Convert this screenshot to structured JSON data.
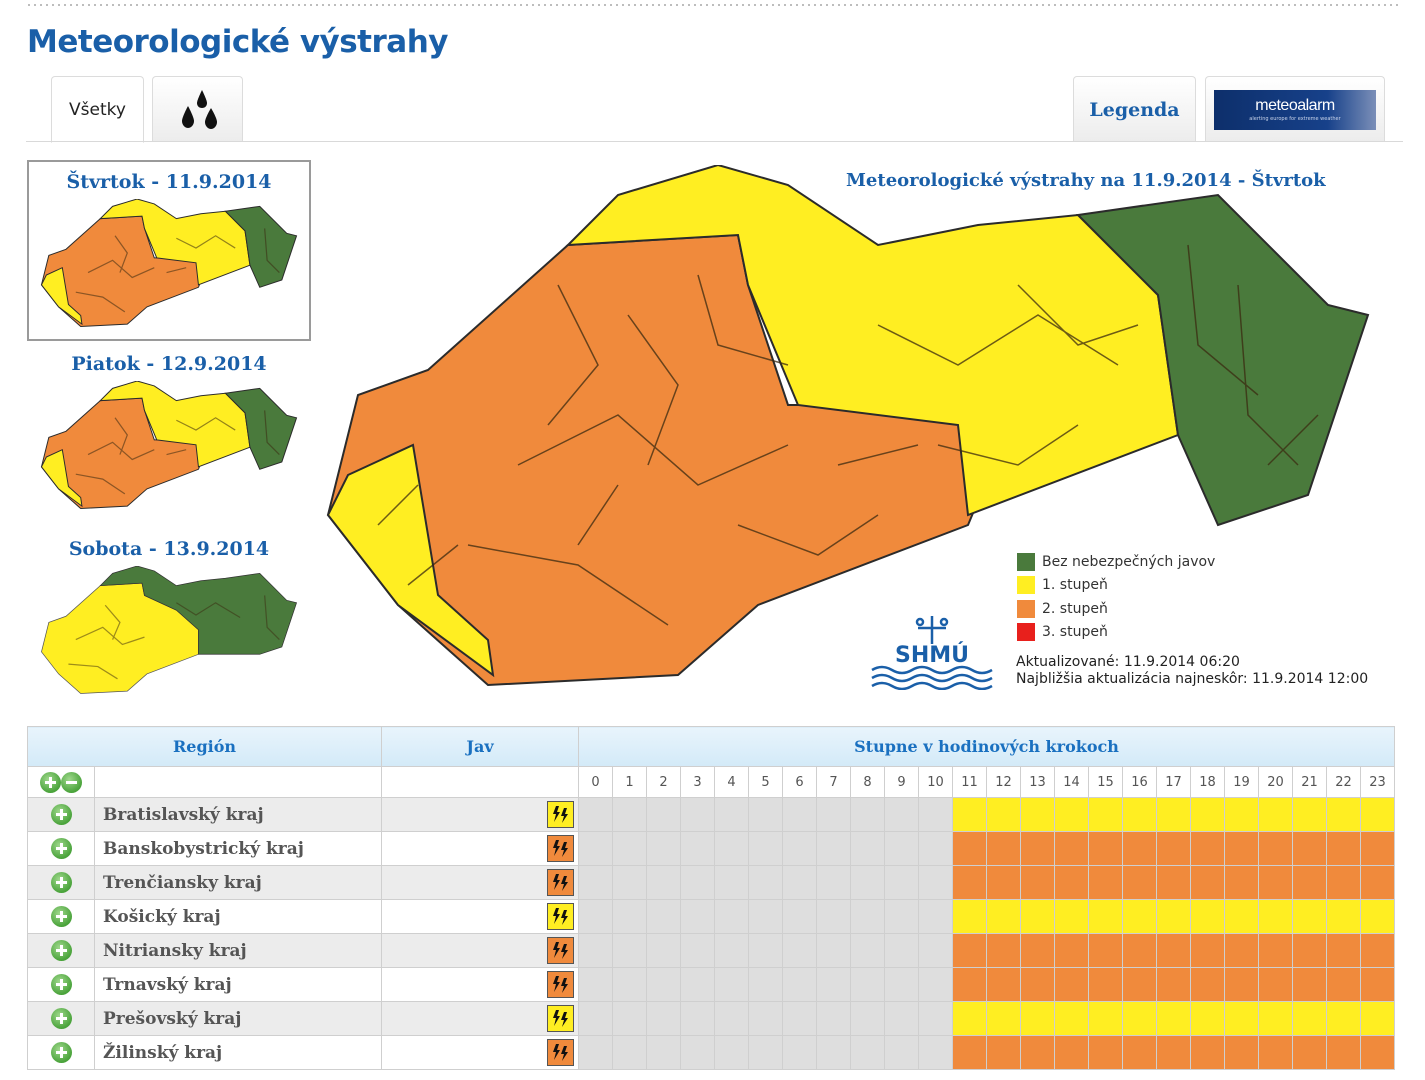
{
  "page": {
    "title": "Meteorologické výstrahy"
  },
  "tabs": {
    "all_label": "Všetky",
    "rain_icon": "rain-drops-icon",
    "legend_label": "Legenda",
    "meteoalarm": {
      "logo_main": "meteoalarm",
      "logo_sub": "alerting europe for extreme weather"
    }
  },
  "days": [
    {
      "label": "Štvrtok - 11.9.2014",
      "selected": true
    },
    {
      "label": "Piatok - 12.9.2014",
      "selected": false
    },
    {
      "label": "Sobota - 13.9.2014",
      "selected": false
    }
  ],
  "map": {
    "title": "Meteorologické výstrahy na 11.9.2014 - Štvrtok",
    "legend": [
      {
        "label": "Bez nebezpečných javov",
        "color": "#4a7a3c"
      },
      {
        "label": "1. stupeň",
        "color": "#ffee22"
      },
      {
        "label": "2. stupeň",
        "color": "#f08a3c"
      },
      {
        "label": "3. stupeň",
        "color": "#e8201c"
      }
    ],
    "logo_text": "SHMÚ",
    "updated": "Aktualizované: 11.9.2014 06:20",
    "next_update": "Najbližšia aktualizácia najneskôr: 11.9.2014 12:00"
  },
  "colors": {
    "green": "#4a7a3c",
    "yellow": "#ffee22",
    "orange": "#f08a3c",
    "accent": "#1a5fa8"
  },
  "table": {
    "region_header": "Región",
    "jav_header": "Jav",
    "hours_header": "Stupne v hodinových krokoch",
    "hours": [
      "0",
      "1",
      "2",
      "3",
      "4",
      "5",
      "6",
      "7",
      "8",
      "9",
      "10",
      "11",
      "12",
      "13",
      "14",
      "15",
      "16",
      "17",
      "18",
      "19",
      "20",
      "21",
      "22",
      "23"
    ],
    "regions": [
      {
        "name": "Bratislavský kraj",
        "level": "yellow",
        "icon": "thunderstorm-icon"
      },
      {
        "name": "Banskobystrický kraj",
        "level": "orange",
        "icon": "thunderstorm-icon"
      },
      {
        "name": "Trenčiansky kraj",
        "level": "orange",
        "icon": "thunderstorm-icon"
      },
      {
        "name": "Košický kraj",
        "level": "yellow",
        "icon": "thunderstorm-icon"
      },
      {
        "name": "Nitriansky kraj",
        "level": "orange",
        "icon": "thunderstorm-icon"
      },
      {
        "name": "Trnavský kraj",
        "level": "orange",
        "icon": "thunderstorm-icon"
      },
      {
        "name": "Prešovský kraj",
        "level": "yellow",
        "icon": "thunderstorm-icon"
      },
      {
        "name": "Žilinský kraj",
        "level": "orange",
        "icon": "thunderstorm-icon"
      }
    ],
    "warning_from_hour": 11
  }
}
